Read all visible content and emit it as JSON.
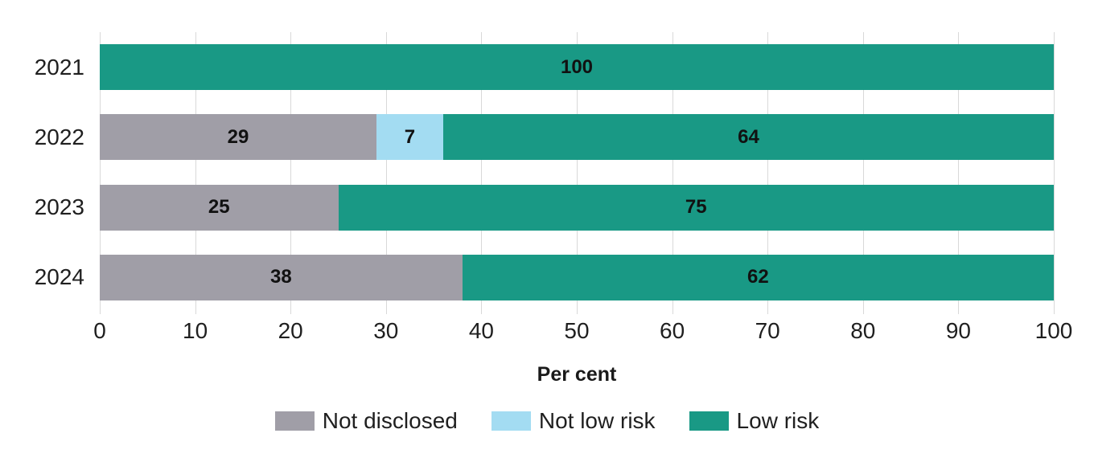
{
  "chart_data": {
    "type": "bar",
    "orientation": "horizontal",
    "stacked": true,
    "title": "",
    "categories": [
      "2021",
      "2022",
      "2023",
      "2024"
    ],
    "series": [
      {
        "name": "Not disclosed",
        "color": "#a09ea7",
        "values": [
          0,
          29,
          25,
          38
        ]
      },
      {
        "name": "Not low risk",
        "color": "#a3dcf2",
        "values": [
          0,
          7,
          0,
          0
        ]
      },
      {
        "name": "Low risk",
        "color": "#199985",
        "values": [
          100,
          64,
          75,
          62
        ]
      }
    ],
    "segment_labels": {
      "2021": [
        "",
        "",
        "100"
      ],
      "2022": [
        "29",
        "7",
        "64"
      ],
      "2023": [
        "25",
        "",
        "75"
      ],
      "2024": [
        "38",
        "",
        "62"
      ]
    },
    "xlabel": "Per cent",
    "xlim": [
      0,
      100
    ],
    "x_ticks": [
      "0",
      "10",
      "20",
      "30",
      "40",
      "50",
      "60",
      "70",
      "80",
      "90",
      "100"
    ],
    "grid": true,
    "gridline_color": "#d9d9d9",
    "legend_position": "bottom",
    "legend_entries": [
      "Not disclosed",
      "Not low risk",
      "Low risk"
    ]
  }
}
